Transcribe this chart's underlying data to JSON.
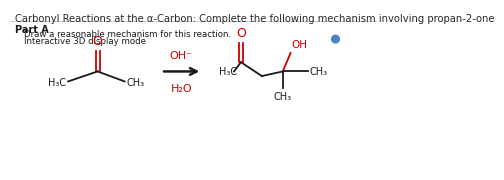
{
  "title": "Carbonyl Reactions at the α-Carbon: Complete the following mechanism involving propan-2-one",
  "part_a_label": "Part A",
  "part_a_text": "Draw a reasonable mechanism for this reaction.",
  "interactive_text": "Interactive 3D display mode",
  "reagent1": "OH⁻",
  "reagent2": "H₂O",
  "bg_color": "#ffffff",
  "title_color": "#2a2a2a",
  "red_color": "#cc0000",
  "black_color": "#1a1a1a",
  "info_blue": "#4a86c8"
}
